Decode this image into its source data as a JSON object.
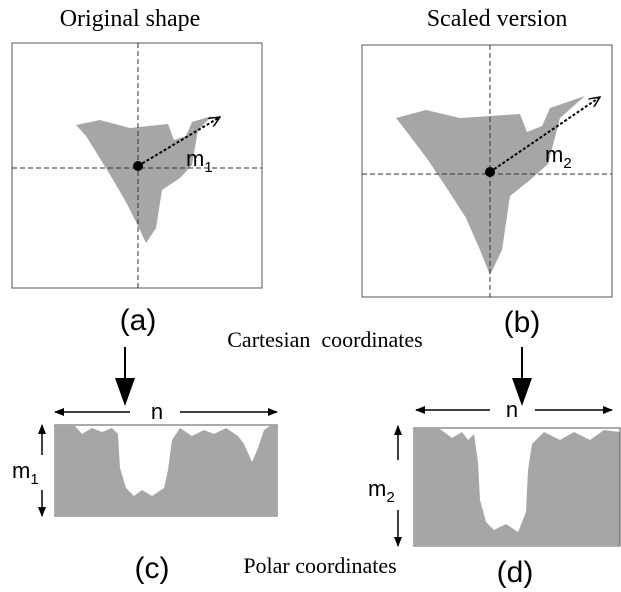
{
  "panels": [
    {
      "title": "Original shape",
      "label": "(a)",
      "radius": {
        "main": "m",
        "sub": "1"
      }
    },
    {
      "title": "Scaled version",
      "label": "(b)",
      "radius": {
        "main": "m",
        "sub": "2"
      }
    },
    {
      "label": "(c)",
      "width": "n",
      "height": {
        "main": "m",
        "sub": "1"
      }
    },
    {
      "label": "(d)",
      "width": "n",
      "height": {
        "main": "m",
        "sub": "2"
      }
    }
  ],
  "cartesian_label": "Cartesian  coordinates",
  "polar_label": "Polar coordinates"
}
